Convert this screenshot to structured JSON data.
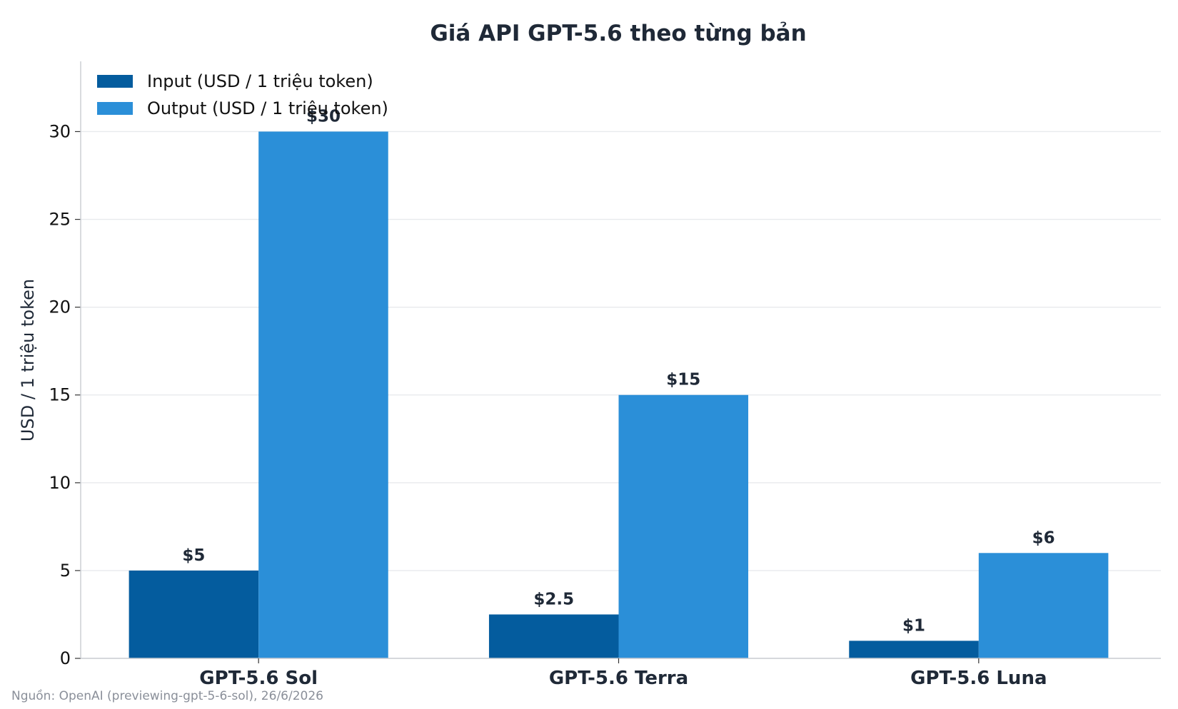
{
  "chart_data": {
    "type": "bar",
    "title": "Giá API GPT-5.6 theo từng bản",
    "xlabel": "",
    "ylabel": "USD / 1 triệu token",
    "categories": [
      "GPT-5.6 Sol",
      "GPT-5.6 Terra",
      "GPT-5.6 Luna"
    ],
    "series": [
      {
        "name": "Input (USD / 1 triệu token)",
        "values": [
          5,
          2.5,
          1
        ],
        "labels": [
          "$5",
          "$2.5",
          "$1"
        ],
        "color": "#045C9E"
      },
      {
        "name": "Output (USD / 1 triệu token)",
        "values": [
          30,
          15,
          6
        ],
        "labels": [
          "$30",
          "$15",
          "$6"
        ],
        "color": "#2B8FD8"
      }
    ],
    "ylim": [
      0,
      34
    ],
    "yticks": [
      0,
      5,
      10,
      15,
      20,
      25,
      30
    ],
    "grid": "y",
    "legend": "top-left",
    "source": "Nguồn: OpenAI (previewing-gpt-5-6-sol), 26/6/2026"
  }
}
